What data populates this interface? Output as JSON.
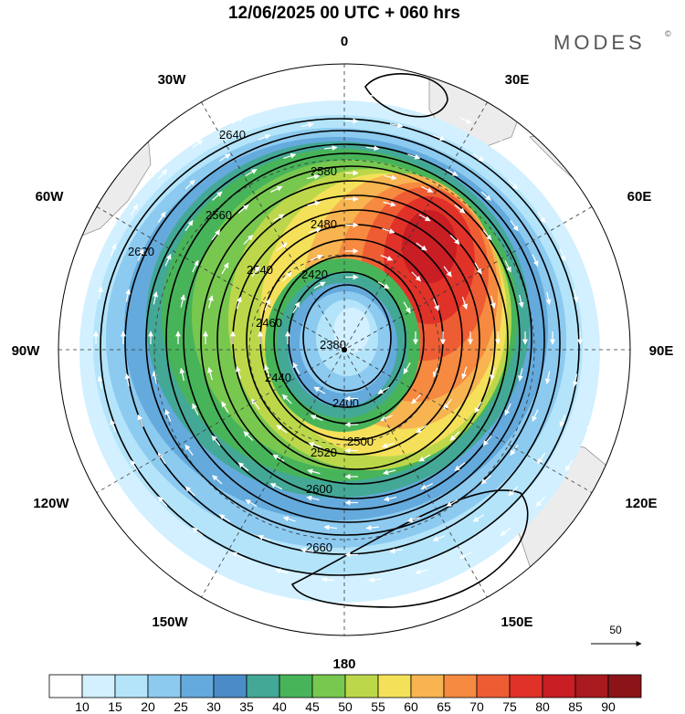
{
  "header": {
    "title": "12/06/2025  00 UTC  + 060 hrs",
    "brand": "MODES",
    "brand_mark": "©"
  },
  "map": {
    "projection": "polar-stereographic",
    "pole": "south",
    "longitude_labels": [
      {
        "lon": 0,
        "text": "0"
      },
      {
        "lon": 30,
        "text": "30E"
      },
      {
        "lon": 60,
        "text": "60E"
      },
      {
        "lon": 90,
        "text": "90E"
      },
      {
        "lon": 120,
        "text": "120E"
      },
      {
        "lon": 150,
        "text": "150E"
      },
      {
        "lon": 180,
        "text": "180"
      },
      {
        "lon": -150,
        "text": "150W"
      },
      {
        "lon": -120,
        "text": "120W"
      },
      {
        "lon": -90,
        "text": "90W"
      },
      {
        "lon": -60,
        "text": "60W"
      },
      {
        "lon": -30,
        "text": "30W"
      }
    ],
    "contour_labels": [
      "2380",
      "2400",
      "2420",
      "2440",
      "2460",
      "2480",
      "2500",
      "2520",
      "2540",
      "2560",
      "2580",
      "2600",
      "2620",
      "2640",
      "2660"
    ],
    "wind_reference": {
      "value": "50"
    },
    "colorbar": {
      "levels": [
        "10",
        "15",
        "20",
        "25",
        "30",
        "35",
        "40",
        "45",
        "50",
        "55",
        "60",
        "65",
        "70",
        "75",
        "80",
        "85",
        "90"
      ],
      "colors": [
        "#ffffff",
        "#d2f0ff",
        "#b4e4fa",
        "#8ccaf0",
        "#64aadc",
        "#4a8cc8",
        "#44a896",
        "#48b45a",
        "#78c850",
        "#bcd84a",
        "#f5e05a",
        "#f7b450",
        "#f58a40",
        "#ee5c34",
        "#e03228",
        "#c81e24",
        "#a81a1e",
        "#8c1418"
      ]
    },
    "colors": {
      "contour": "#000000",
      "arrows": "#ffffff",
      "land": "#ececec",
      "graticule": "#333333"
    }
  }
}
